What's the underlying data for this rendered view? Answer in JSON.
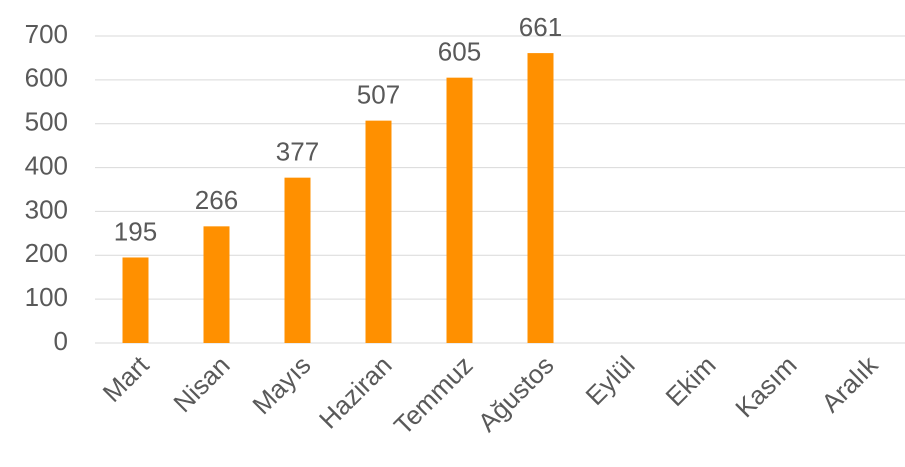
{
  "chart_data": {
    "type": "bar",
    "categories": [
      "Mart",
      "Nisan",
      "Mayıs",
      "Haziran",
      "Temmuz",
      "Ağustos",
      "Eylül",
      "Ekim",
      "Kasım",
      "Aralık"
    ],
    "values": [
      195,
      266,
      377,
      507,
      605,
      661,
      null,
      null,
      null,
      null
    ],
    "color": "#ff9000",
    "ylim": [
      0,
      700
    ],
    "yticks": [
      0,
      100,
      200,
      300,
      400,
      500,
      600,
      700
    ],
    "grid": true
  }
}
